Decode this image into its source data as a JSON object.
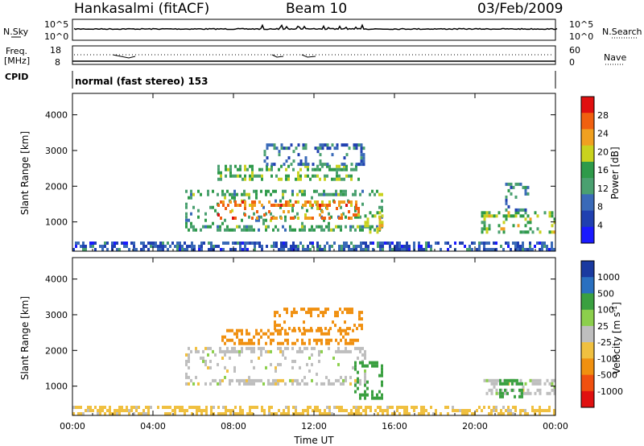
{
  "header": {
    "station": "Hankasalmi (fitACF)",
    "beam": "Beam 10",
    "date": "03/Feb/2009"
  },
  "top_panel": {
    "left_label": "N.Sky",
    "right_label": "N.Search",
    "left_ticks": [
      "10^5",
      "10^0"
    ],
    "right_ticks": [
      "10^5",
      "10^0"
    ]
  },
  "freq_panel": {
    "left_label_1": "Freq.",
    "left_label_2": "[MHz]",
    "right_label": "Nave",
    "left_ticks": [
      "18",
      "8"
    ],
    "right_ticks": [
      "60",
      "0"
    ]
  },
  "cpid": {
    "label": "CPID",
    "text": "normal (fast stereo) 153"
  },
  "colors": {
    "power": [
      "#1a1aff",
      "#2040b0",
      "#3a6ab8",
      "#4aa070",
      "#2e9a4a",
      "#c9d21e",
      "#f0a020",
      "#f06010",
      "#e01010"
    ],
    "velocity": [
      "#e01010",
      "#f05010",
      "#f09010",
      "#f0c040",
      "#bebebe",
      "#8ccf4c",
      "#3aa040",
      "#2a70c0",
      "#1a3aa0"
    ]
  },
  "chart_data": [
    {
      "type": "heatmap",
      "title": "Power",
      "ylabel": "Slant Range [km]",
      "xlabel": "Time UT",
      "x_ticks": [
        "00:00",
        "04:00",
        "08:00",
        "12:00",
        "16:00",
        "20:00",
        "00:00"
      ],
      "x_range_hours": [
        0,
        24
      ],
      "y_ticks": [
        "1000",
        "2000",
        "3000",
        "4000"
      ],
      "y_range_km": [
        180,
        4600
      ],
      "colorbar_label": "Power [dB]",
      "colorbar_ticks": [
        "4",
        "8",
        "12",
        "16",
        "20",
        "24",
        "28"
      ],
      "colorbar_range": [
        0,
        32
      ],
      "regions": [
        {
          "t0": 5.6,
          "t1": 15.4,
          "r0": 800,
          "r1": 1900,
          "level": 14
        },
        {
          "t0": 7.2,
          "t1": 14.2,
          "r0": 1100,
          "r1": 1600,
          "level": 26
        },
        {
          "t0": 7.2,
          "t1": 14.2,
          "r0": 2200,
          "r1": 2600,
          "level": 16
        },
        {
          "t0": 9.5,
          "t1": 14.5,
          "r0": 2600,
          "r1": 3200,
          "level": 8
        },
        {
          "t0": 14.5,
          "t1": 15.4,
          "r0": 700,
          "r1": 1300,
          "level": 20
        },
        {
          "t0": 20.3,
          "t1": 24,
          "r0": 700,
          "r1": 1300,
          "level": 18
        },
        {
          "t0": 21.5,
          "t1": 22.6,
          "r0": 1300,
          "r1": 2100,
          "level": 10
        },
        {
          "t0": 0,
          "t1": 24,
          "r0": 180,
          "r1": 450,
          "level": 6
        }
      ]
    },
    {
      "type": "heatmap",
      "title": "Velocity",
      "ylabel": "Slant Range [km]",
      "xlabel": "Time UT",
      "x_ticks": [
        "00:00",
        "04:00",
        "08:00",
        "12:00",
        "16:00",
        "20:00",
        "00:00"
      ],
      "x_range_hours": [
        0,
        24
      ],
      "y_ticks": [
        "1000",
        "2000",
        "3000",
        "4000"
      ],
      "y_range_km": [
        180,
        4600
      ],
      "colorbar_label": "Velocity [m s^-1]",
      "colorbar_ticks": [
        "1000",
        "500",
        "100",
        "25",
        "-25",
        "-100",
        "-500",
        "-1000"
      ],
      "regions": [
        {
          "t0": 5.6,
          "t1": 14.6,
          "r0": 1100,
          "r1": 2100,
          "level": 0
        },
        {
          "t0": 7.4,
          "t1": 14.2,
          "r0": 2200,
          "r1": 2600,
          "level": -200
        },
        {
          "t0": 10.0,
          "t1": 14.4,
          "r0": 2600,
          "r1": 3200,
          "level": -200
        },
        {
          "t0": 14.0,
          "t1": 15.4,
          "r0": 700,
          "r1": 1700,
          "level": 200
        },
        {
          "t0": 20.3,
          "t1": 24,
          "r0": 800,
          "r1": 1200,
          "level": 0
        },
        {
          "t0": 21.2,
          "t1": 22.4,
          "r0": 700,
          "r1": 1200,
          "level": 300
        },
        {
          "t0": 0,
          "t1": 24,
          "r0": 180,
          "r1": 450,
          "level": -50
        }
      ]
    }
  ]
}
